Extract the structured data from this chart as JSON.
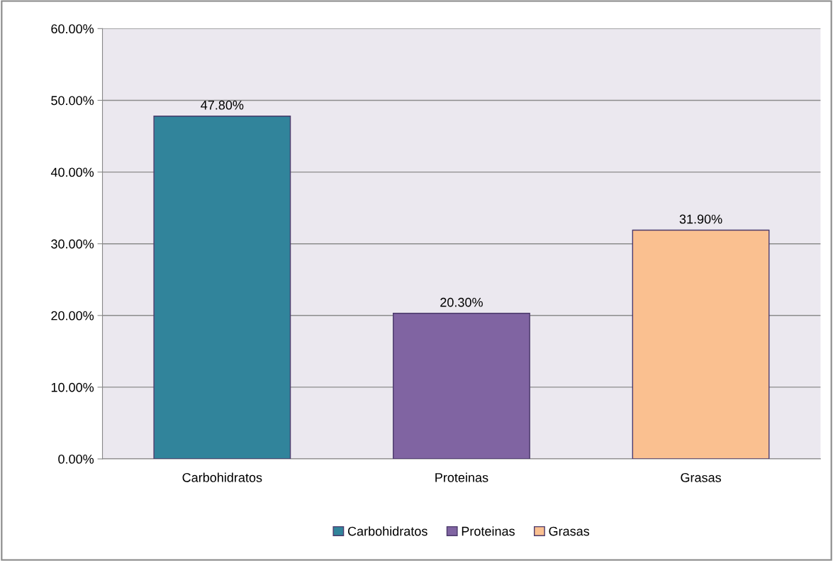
{
  "chart_data": {
    "type": "bar",
    "categories": [
      "Carbohidratos",
      "Proteinas",
      "Grasas"
    ],
    "series": [
      {
        "name": "Carbohidratos",
        "color": "#31849b",
        "values": [
          47.8,
          null,
          null
        ],
        "value_labels": [
          "47.80%",
          null,
          null
        ]
      },
      {
        "name": "Proteinas",
        "color": "#8064a2",
        "values": [
          null,
          20.3,
          null
        ],
        "value_labels": [
          null,
          "20.30%",
          null
        ]
      },
      {
        "name": "Grasas",
        "color": "#fac090",
        "values": [
          null,
          null,
          31.9
        ],
        "value_labels": [
          null,
          null,
          "31.90%"
        ]
      }
    ],
    "ylim": [
      0,
      60
    ],
    "yticks": [
      {
        "value": 0,
        "label": "0.00%"
      },
      {
        "value": 10,
        "label": "10.00%"
      },
      {
        "value": 20,
        "label": "20.00%"
      },
      {
        "value": 30,
        "label": "30.00%"
      },
      {
        "value": 40,
        "label": "40.00%"
      },
      {
        "value": 50,
        "label": "50.00%"
      },
      {
        "value": 60,
        "label": "60.00%"
      }
    ],
    "grid": "y",
    "legend": "bottom"
  }
}
